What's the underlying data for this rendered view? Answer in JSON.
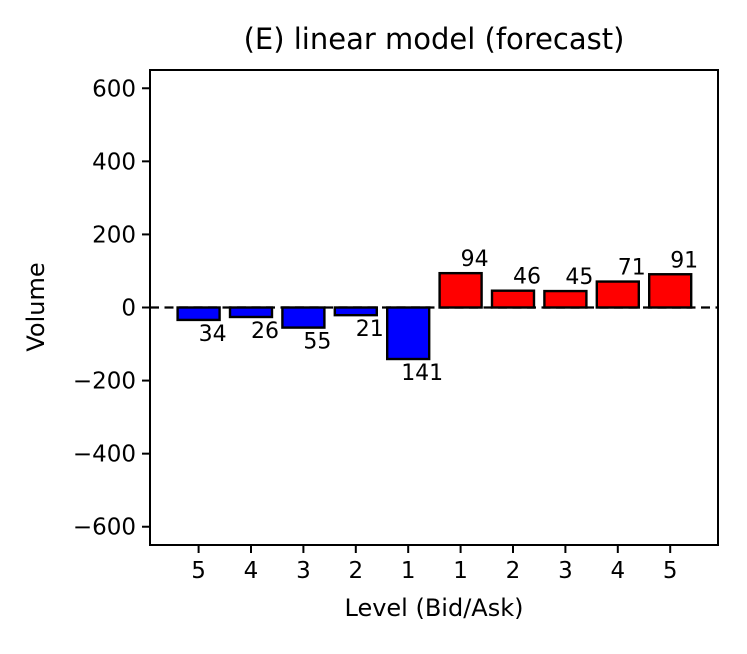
{
  "chart_data": {
    "type": "bar",
    "title": "(E) linear model (forecast)",
    "xlabel": "Level (Bid/Ask)",
    "ylabel": "Volume",
    "categories": [
      "5",
      "4",
      "3",
      "2",
      "1",
      "1",
      "2",
      "3",
      "4",
      "5"
    ],
    "values": [
      -34,
      -26,
      -55,
      -21,
      -141,
      94,
      46,
      45,
      71,
      91
    ],
    "bar_value_labels": [
      "34",
      "26",
      "55",
      "21",
      "141",
      "94",
      "46",
      "45",
      "71",
      "91"
    ],
    "sides": [
      "bid",
      "bid",
      "bid",
      "bid",
      "bid",
      "ask",
      "ask",
      "ask",
      "ask",
      "ask"
    ],
    "series": [
      {
        "name": "bid",
        "categories": [
          "5",
          "4",
          "3",
          "2",
          "1"
        ],
        "values": [
          -34,
          -26,
          -55,
          -21,
          -141
        ]
      },
      {
        "name": "ask",
        "categories": [
          "1",
          "2",
          "3",
          "4",
          "5"
        ],
        "values": [
          94,
          46,
          45,
          71,
          91
        ]
      }
    ],
    "colors": {
      "bid": "#0000FF",
      "ask": "#FF0000",
      "edge": "#000000",
      "zero_line": "#000000",
      "background": "#FFFFFF"
    },
    "yticks": {
      "values": [
        600,
        400,
        200,
        0,
        -200,
        -400,
        -600
      ],
      "labels": [
        "600",
        "400",
        "200",
        "0",
        "−200",
        "−400",
        "−600"
      ]
    },
    "ylim": [
      -650,
      650
    ],
    "zero_line_style": "dashed",
    "grid": "off",
    "legend": "none"
  }
}
